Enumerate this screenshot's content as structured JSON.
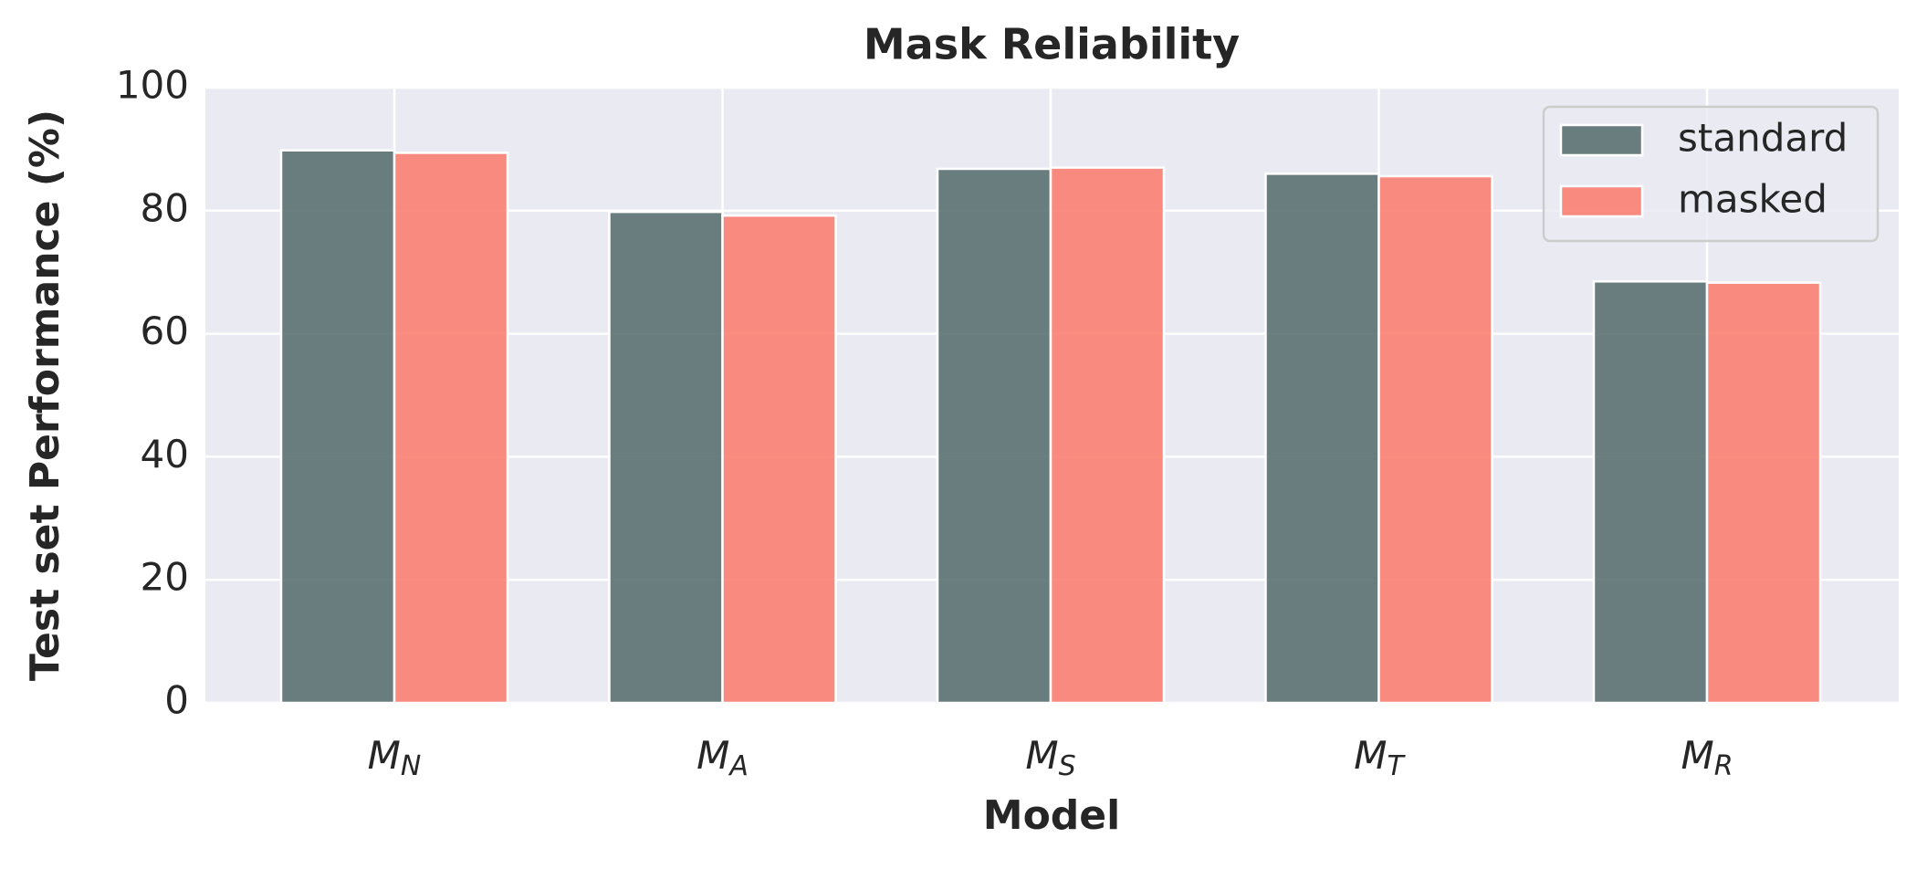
{
  "chart_data": {
    "type": "bar",
    "title": "Mask Reliability",
    "x_label": "Model",
    "y_label": "Test set Performance (%)",
    "categories": [
      {
        "symbol": "M",
        "subscript": "N"
      },
      {
        "symbol": "M",
        "subscript": "A"
      },
      {
        "symbol": "M",
        "subscript": "S"
      },
      {
        "symbol": "M",
        "subscript": "T"
      },
      {
        "symbol": "M",
        "subscript": "R"
      }
    ],
    "series": [
      {
        "name": "standard",
        "color": "#5b7172",
        "values": [
          89.8,
          79.8,
          86.8,
          86.0,
          68.5
        ]
      },
      {
        "name": "masked",
        "color": "#fa8072",
        "values": [
          89.4,
          79.2,
          87.0,
          85.6,
          68.3
        ]
      }
    ],
    "ylim": [
      0,
      100
    ],
    "yticks": [
      0,
      20,
      40,
      60,
      80,
      100
    ],
    "grid": true,
    "legend": "upper right"
  }
}
